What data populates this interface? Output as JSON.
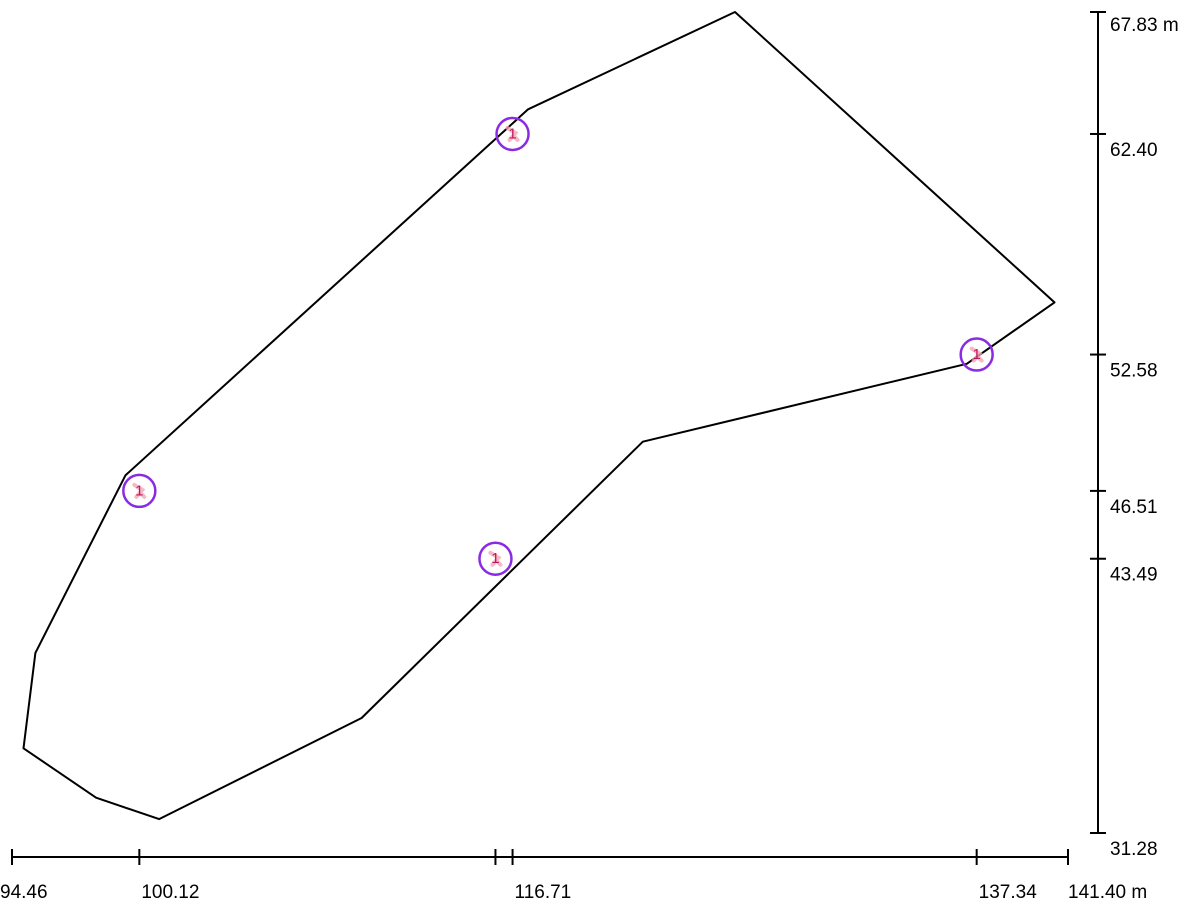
{
  "chart_data": {
    "type": "diagram",
    "x_axis": {
      "unit": "m",
      "ticks": [
        {
          "value": 94.46,
          "label": "94.46"
        },
        {
          "value": 100.12,
          "label": "100.12"
        },
        {
          "value": 116.71,
          "label": "116.71"
        },
        {
          "value": 137.34,
          "label": "137.34"
        },
        {
          "value": 141.4,
          "label": "141.40 m"
        }
      ],
      "range": [
        94.46,
        141.4
      ]
    },
    "y_axis": {
      "unit": "m",
      "ticks": [
        {
          "value": 67.83,
          "label": "67.83 m"
        },
        {
          "value": 62.4,
          "label": "62.40"
        },
        {
          "value": 52.58,
          "label": "52.58"
        },
        {
          "value": 46.51,
          "label": "46.51"
        },
        {
          "value": 43.49,
          "label": "43.49"
        },
        {
          "value": 31.28,
          "label": "31.28"
        }
      ],
      "range": [
        31.28,
        67.83
      ]
    },
    "outline": [
      [
        94.97,
        35.05
      ],
      [
        95.5,
        39.3
      ],
      [
        99.5,
        47.2
      ],
      [
        117.4,
        63.5
      ],
      [
        126.6,
        67.83
      ],
      [
        140.8,
        54.9
      ],
      [
        136.9,
        52.17
      ],
      [
        122.5,
        48.7
      ],
      [
        110.0,
        36.4
      ],
      [
        101.0,
        31.9
      ],
      [
        98.2,
        32.85
      ]
    ],
    "markers": [
      {
        "label": "1",
        "x": 100.12,
        "y": 46.51
      },
      {
        "label": "1",
        "x": 116.71,
        "y": 62.4
      },
      {
        "label": "1",
        "x": 137.34,
        "y": 52.58
      },
      {
        "label": "1",
        "x": 115.95,
        "y": 43.49
      }
    ]
  }
}
